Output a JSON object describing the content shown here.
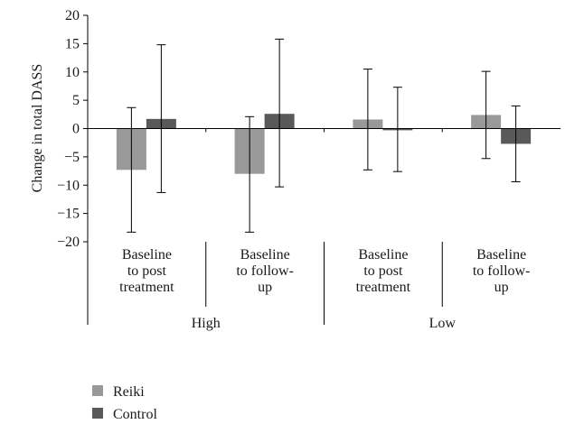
{
  "chart_data": {
    "type": "bar",
    "title": "",
    "xlabel": "",
    "ylabel": "Change in total DASS",
    "ylim": [
      -20,
      20
    ],
    "yticks": [
      -20,
      -15,
      -10,
      -5,
      0,
      5,
      10,
      15,
      20
    ],
    "groups": [
      "High",
      "Low"
    ],
    "categories": [
      {
        "group": "High",
        "lines": [
          "Baseline",
          "to post",
          "treatment"
        ]
      },
      {
        "group": "High",
        "lines": [
          "Baseline",
          "to follow-",
          "up"
        ]
      },
      {
        "group": "Low",
        "lines": [
          "Baseline",
          "to post",
          "treatment"
        ]
      },
      {
        "group": "Low",
        "lines": [
          "Baseline",
          "to follow-",
          "up"
        ]
      }
    ],
    "series": [
      {
        "name": "Reiki",
        "color": "#999999",
        "values": [
          -7.3,
          -8.0,
          1.6,
          2.4
        ],
        "error_low": [
          -18.3,
          -18.3,
          -7.3,
          -5.3
        ],
        "error_high": [
          3.7,
          2.1,
          10.5,
          10.1
        ]
      },
      {
        "name": "Control",
        "color": "#595959",
        "values": [
          1.7,
          2.6,
          -0.3,
          -2.7
        ],
        "error_low": [
          -11.3,
          -10.3,
          -7.6,
          -9.4
        ],
        "error_high": [
          14.8,
          15.8,
          7.3,
          4.0
        ]
      }
    ],
    "grid": false,
    "legend_position": "bottom-left"
  }
}
